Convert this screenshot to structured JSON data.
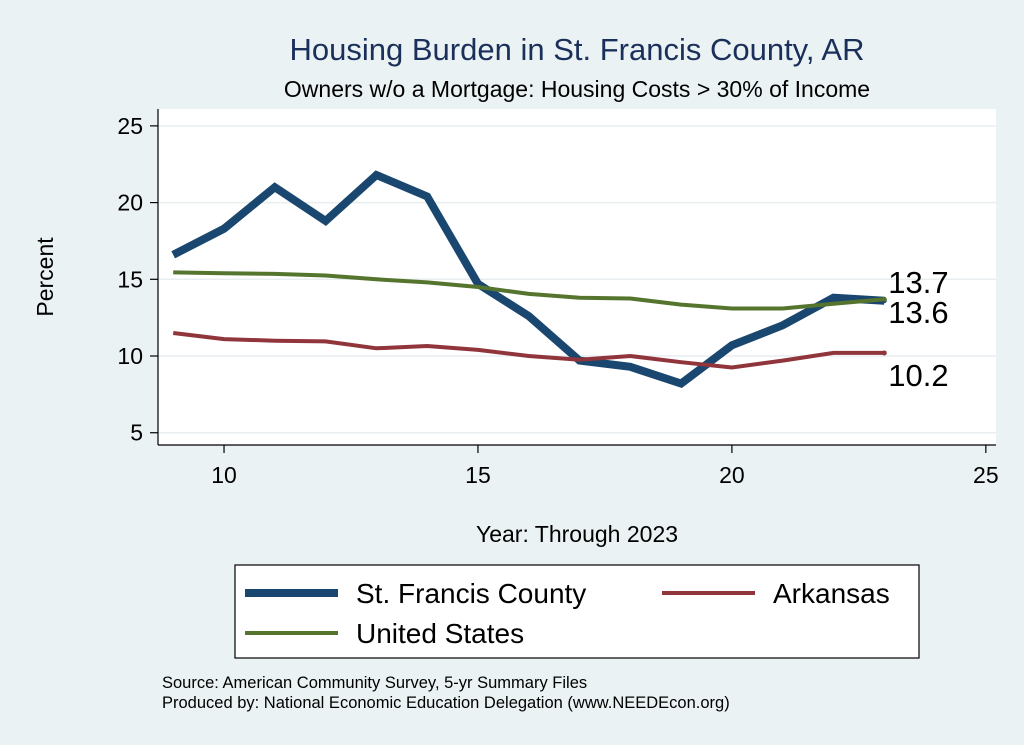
{
  "chart_data": {
    "type": "line",
    "title": "Housing Burden in St. Francis County, AR",
    "subtitle": "Owners w/o a Mortgage: Housing Costs > 30% of Income",
    "xlabel": "Year: Through 2023",
    "ylabel": "Percent",
    "xlim": [
      8.7,
      25.2
    ],
    "ylim": [
      4.2,
      26.1
    ],
    "xticks": [
      10,
      15,
      20,
      25
    ],
    "yticks": [
      5,
      10,
      15,
      20,
      25
    ],
    "grid": "horizontal",
    "legend": "bottom",
    "series": [
      {
        "name": "St. Francis County",
        "color": "#1a476f",
        "x": [
          9,
          10,
          11,
          12,
          13,
          14,
          15,
          16,
          17,
          18,
          19,
          20,
          21,
          22,
          23
        ],
        "values": [
          16.6,
          18.3,
          21.0,
          18.8,
          21.8,
          20.4,
          14.7,
          12.6,
          9.7,
          9.3,
          8.2,
          10.7,
          12.0,
          13.8,
          13.6
        ],
        "end_label": "13.6"
      },
      {
        "name": "Arkansas",
        "color": "#90353b",
        "x": [
          9,
          10,
          11,
          12,
          13,
          14,
          15,
          16,
          17,
          18,
          19,
          20,
          21,
          22,
          23
        ],
        "values": [
          11.5,
          11.1,
          11.0,
          10.95,
          10.5,
          10.65,
          10.4,
          10.0,
          9.75,
          10.0,
          9.6,
          9.25,
          9.7,
          10.2,
          10.2
        ],
        "end_label": "10.2"
      },
      {
        "name": "United States",
        "color": "#55752f",
        "x": [
          9,
          10,
          11,
          12,
          13,
          14,
          15,
          16,
          17,
          18,
          19,
          20,
          21,
          22,
          23
        ],
        "values": [
          15.45,
          15.4,
          15.35,
          15.25,
          15.0,
          14.8,
          14.5,
          14.05,
          13.8,
          13.75,
          13.35,
          13.1,
          13.1,
          13.4,
          13.7
        ],
        "end_label": "13.7"
      }
    ],
    "notes": [
      "Source: American Community Survey, 5-yr Summary Files",
      "Produced by: National Economic Education Delegation (www.NEEDEcon.org)"
    ]
  }
}
